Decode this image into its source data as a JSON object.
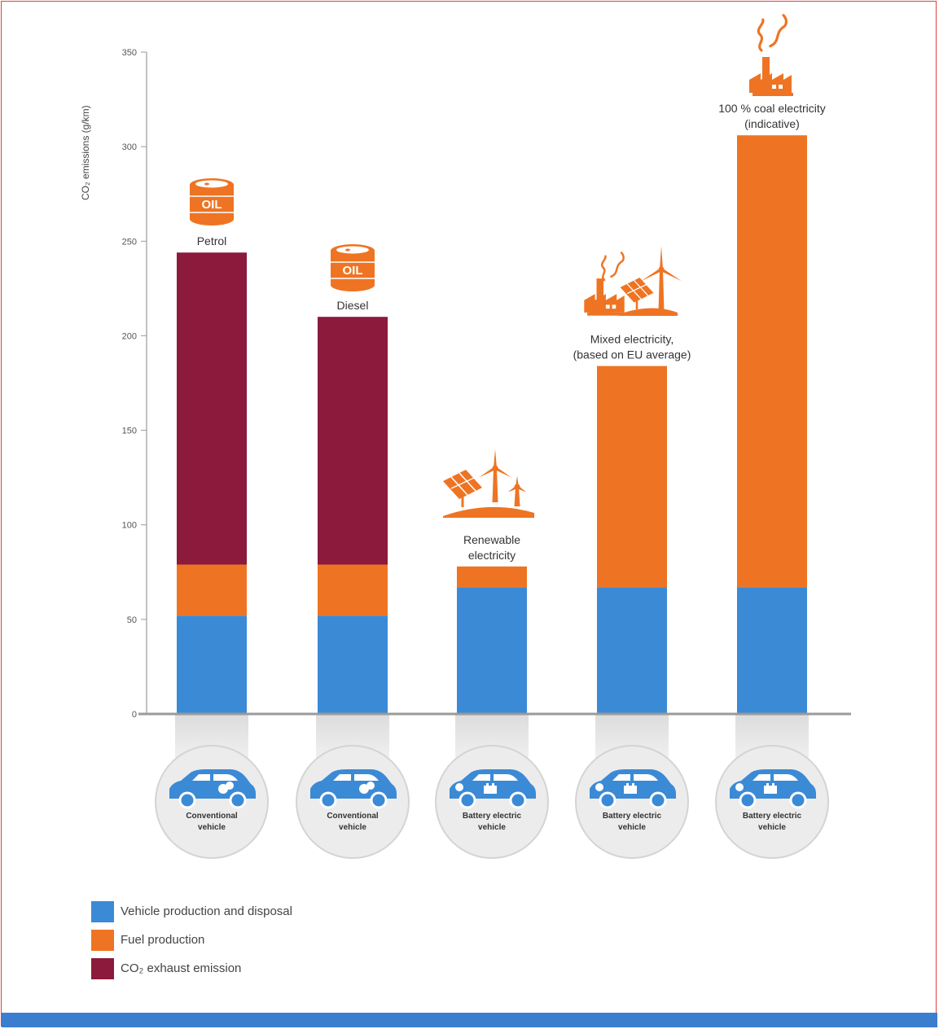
{
  "chart_data": {
    "type": "bar",
    "stacked": true,
    "ylabel": "CO₂ emissions (g/km)",
    "ylim": [
      0,
      350
    ],
    "yticks": [
      0,
      50,
      100,
      150,
      200,
      250,
      300,
      350
    ],
    "categories": [
      "Conventional vehicle",
      "Conventional vehicle",
      "Battery electric vehicle",
      "Battery electric vehicle",
      "Battery electric vehicle"
    ],
    "bar_labels": [
      "Petrol",
      "Diesel",
      "Renewable electricity",
      "Mixed electricity, (based on EU average)",
      "100 % coal electricity (indicative)"
    ],
    "series": [
      {
        "name": "Vehicle production and disposal",
        "color": "#3b8ad6",
        "values": [
          52,
          52,
          67,
          67,
          67
        ]
      },
      {
        "name": "Fuel production",
        "color": "#ee7423",
        "values": [
          27,
          27,
          11,
          117,
          239
        ]
      },
      {
        "name": "CO₂ exhaust emission",
        "color": "#8b1a3c",
        "values": [
          165,
          131,
          0,
          0,
          0
        ]
      }
    ],
    "icons": [
      "oil-barrel-icon",
      "oil-barrel-icon",
      "solar-wind-icon",
      "factory-solar-wind-icon",
      "factory-icon"
    ],
    "vehicle_icons": [
      "conventional-car-icon",
      "conventional-car-icon",
      "electric-car-icon",
      "electric-car-icon",
      "electric-car-icon"
    ],
    "legend_position": "bottom-left",
    "grid": false
  },
  "icon_labels": [
    "OIL",
    "OIL"
  ],
  "colors": {
    "frame": "#e04040",
    "bottom_bar": "#3b7ed0",
    "axis": "#9a9a9a",
    "circle_fill": "#ececec",
    "circle_stroke": "#d4d4d4",
    "car": "#3b8ad6",
    "icon": "#ee7423"
  }
}
